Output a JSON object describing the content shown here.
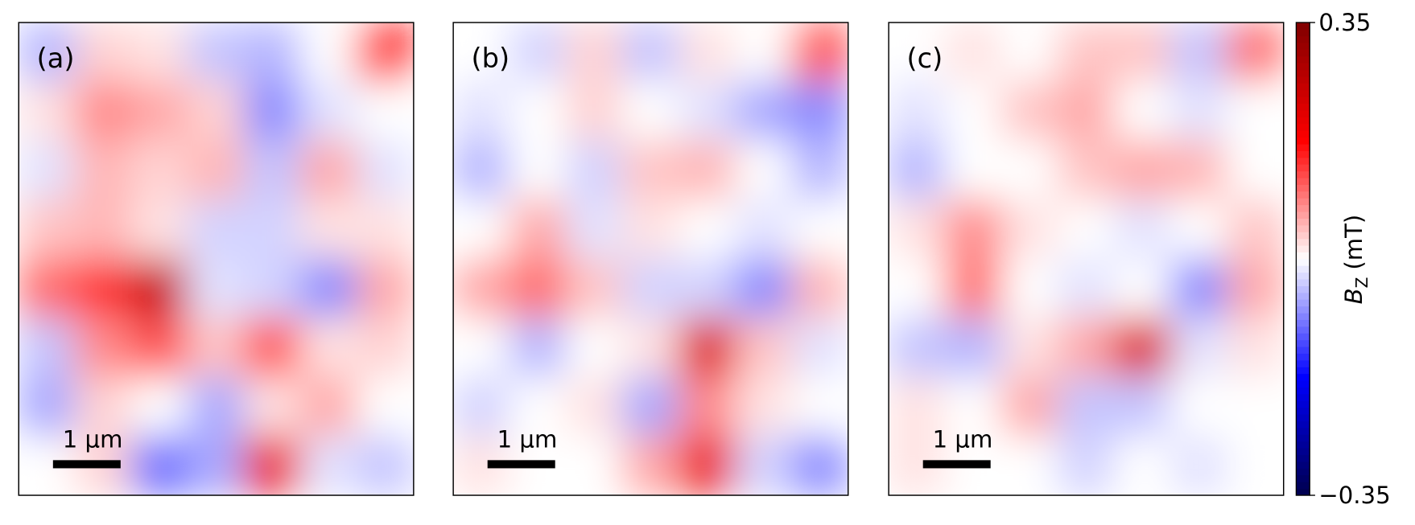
{
  "chart_data": {
    "type": "heatmap",
    "colormap": "seismic",
    "clim": [
      -0.35,
      0.35
    ],
    "cbar_ticks": [
      0.35,
      {
        "value": -0.35,
        "label": "−0.35"
      }
    ],
    "colorbar_label": {
      "symbol": "B",
      "subscript": "Z",
      "unit": "(mT)"
    },
    "scale_bar": "1 μm",
    "panels": [
      {
        "label": "(a)",
        "values": [
          [
            -0.05,
            0.03,
            0.02,
            -0.04,
            -0.05,
            0.0,
            0.15
          ],
          [
            0.02,
            0.08,
            0.06,
            0.03,
            -0.08,
            -0.02,
            0.0
          ],
          [
            -0.02,
            0.05,
            0.03,
            0.05,
            -0.04,
            0.06,
            -0.02
          ],
          [
            0.04,
            0.05,
            0.02,
            -0.03,
            -0.03,
            0.02,
            0.02
          ],
          [
            0.1,
            0.14,
            0.25,
            -0.02,
            -0.03,
            -0.08,
            0.06
          ],
          [
            -0.04,
            0.08,
            0.12,
            0.04,
            0.12,
            0.02,
            0.03
          ],
          [
            -0.06,
            0.03,
            0.0,
            -0.06,
            0.02,
            0.06,
            0.0
          ],
          [
            0.0,
            0.03,
            -0.1,
            -0.06,
            0.2,
            -0.02,
            -0.04
          ]
        ]
      },
      {
        "label": "(b)",
        "values": [
          [
            0.0,
            -0.03,
            0.03,
            -0.04,
            0.02,
            0.0,
            0.12
          ],
          [
            -0.02,
            0.0,
            0.03,
            0.0,
            -0.02,
            -0.06,
            -0.08
          ],
          [
            -0.05,
            0.0,
            -0.03,
            0.04,
            0.05,
            0.0,
            -0.05
          ],
          [
            0.0,
            0.06,
            -0.02,
            0.02,
            0.0,
            -0.02,
            0.0
          ],
          [
            0.06,
            0.1,
            0.04,
            -0.03,
            -0.03,
            -0.08,
            0.05
          ],
          [
            0.0,
            -0.05,
            0.0,
            0.02,
            0.22,
            0.04,
            -0.02
          ],
          [
            -0.03,
            0.0,
            0.02,
            -0.06,
            0.08,
            0.02,
            0.0
          ],
          [
            0.02,
            0.0,
            0.0,
            0.06,
            0.2,
            -0.03,
            -0.08
          ]
        ]
      },
      {
        "label": "(c)",
        "values": [
          [
            0.0,
            0.02,
            0.0,
            0.04,
            0.04,
            -0.04,
            0.1
          ],
          [
            -0.02,
            0.0,
            0.04,
            0.06,
            0.0,
            -0.02,
            0.0
          ],
          [
            -0.05,
            0.0,
            0.0,
            0.04,
            0.06,
            0.05,
            0.0
          ],
          [
            0.02,
            0.08,
            0.02,
            0.0,
            -0.02,
            0.0,
            0.04
          ],
          [
            0.0,
            0.1,
            0.0,
            -0.02,
            0.0,
            -0.08,
            0.06
          ],
          [
            -0.04,
            -0.05,
            0.02,
            0.06,
            0.22,
            -0.02,
            0.02
          ],
          [
            0.02,
            0.0,
            0.06,
            -0.04,
            -0.04,
            0.0,
            0.0
          ],
          [
            0.02,
            0.0,
            0.0,
            -0.03,
            0.0,
            -0.02,
            0.0
          ]
        ]
      }
    ]
  }
}
